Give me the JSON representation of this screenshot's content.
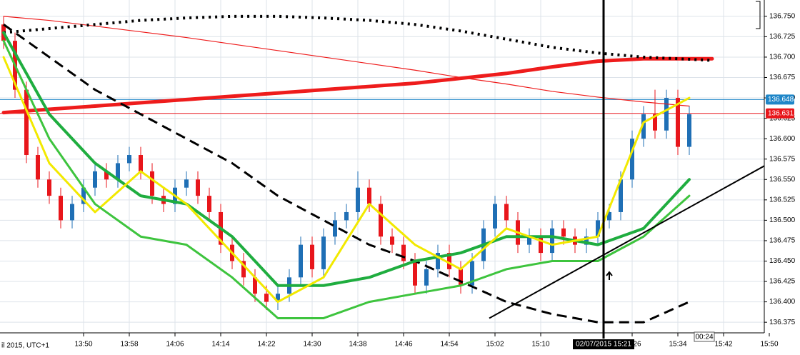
{
  "chart_data": {
    "type": "candlestick",
    "xlim": [
      "13:35",
      "15:50"
    ],
    "xticks": [
      "13:50",
      "13:58",
      "14:06",
      "14:14",
      "14:22",
      "14:30",
      "14:38",
      "14:46",
      "14:54",
      "15:02",
      "15:10",
      "15:26",
      "15:34",
      "15:42",
      "15:50"
    ],
    "x_axis_note": "il 2015, UTC+1",
    "ylim": [
      136.362,
      136.77
    ],
    "yticks": [
      136.375,
      {
        "value": 136.4,
        "label": "136.400"
      },
      136.425,
      {
        "value": 136.45,
        "label": "136.450"
      },
      136.475,
      {
        "value": 136.5,
        "label": "136.500"
      },
      136.525,
      {
        "value": 136.55,
        "label": "136.550"
      },
      136.575,
      {
        "value": 136.6,
        "label": "136.600"
      },
      136.625,
      {
        "value": 136.65,
        "label": "136.650"
      },
      136.675,
      {
        "value": 136.7,
        "label": "136.700"
      },
      136.725,
      {
        "value": 136.75,
        "label": "136.750"
      }
    ],
    "grid": true,
    "up_color": "#1f6fb5",
    "down_color": "#e8161b",
    "x": [
      "13:36",
      "13:38",
      "13:40",
      "13:42",
      "13:44",
      "13:46",
      "13:48",
      "13:50",
      "13:52",
      "13:54",
      "13:56",
      "13:58",
      "14:00",
      "14:02",
      "14:04",
      "14:06",
      "14:08",
      "14:10",
      "14:12",
      "14:14",
      "14:16",
      "14:18",
      "14:20",
      "14:22",
      "14:24",
      "14:26",
      "14:28",
      "14:30",
      "14:32",
      "14:34",
      "14:36",
      "14:38",
      "14:40",
      "14:42",
      "14:44",
      "14:46",
      "14:48",
      "14:50",
      "14:52",
      "14:54",
      "14:56",
      "14:58",
      "15:00",
      "15:02",
      "15:04",
      "15:06",
      "15:08",
      "15:10",
      "15:12",
      "15:14",
      "15:16",
      "15:18",
      "15:20",
      "15:22",
      "15:24",
      "15:26",
      "15:28",
      "15:30",
      "15:32",
      "15:34",
      "15:36"
    ],
    "open": [
      136.74,
      136.72,
      136.66,
      136.58,
      136.55,
      136.53,
      136.5,
      136.52,
      136.54,
      136.56,
      136.55,
      136.57,
      136.58,
      136.56,
      136.53,
      136.52,
      136.54,
      136.55,
      136.53,
      136.51,
      136.47,
      136.45,
      136.43,
      136.41,
      136.4,
      136.41,
      136.43,
      136.47,
      136.44,
      136.48,
      136.5,
      136.51,
      136.54,
      136.52,
      136.48,
      136.47,
      136.45,
      136.42,
      136.44,
      136.46,
      136.44,
      136.42,
      136.45,
      136.49,
      136.52,
      136.5,
      136.47,
      136.48,
      136.46,
      136.49,
      136.48,
      136.47,
      136.48,
      136.5,
      136.51,
      136.55,
      136.6,
      136.63,
      136.61,
      136.65,
      136.59
    ],
    "high": [
      136.75,
      136.73,
      136.67,
      136.59,
      136.56,
      136.54,
      136.53,
      136.55,
      136.57,
      136.57,
      136.58,
      136.59,
      136.59,
      136.57,
      136.54,
      136.55,
      136.56,
      136.56,
      136.54,
      136.52,
      136.48,
      136.46,
      136.44,
      136.42,
      136.42,
      136.44,
      136.48,
      136.48,
      136.49,
      136.51,
      136.52,
      136.56,
      136.55,
      136.53,
      136.49,
      136.48,
      136.46,
      136.45,
      136.47,
      136.47,
      136.45,
      136.46,
      136.5,
      136.53,
      136.53,
      136.51,
      136.49,
      136.49,
      136.5,
      136.5,
      136.49,
      136.49,
      136.51,
      136.52,
      136.56,
      136.61,
      136.64,
      136.66,
      136.66,
      136.66,
      136.64
    ],
    "low": [
      136.71,
      136.65,
      136.57,
      136.54,
      136.52,
      136.49,
      136.49,
      136.51,
      136.53,
      136.54,
      136.54,
      136.56,
      136.55,
      136.52,
      136.51,
      136.51,
      136.53,
      136.52,
      136.5,
      136.46,
      136.44,
      136.42,
      136.4,
      136.39,
      136.39,
      136.4,
      136.42,
      136.43,
      136.43,
      136.47,
      136.49,
      136.5,
      136.51,
      136.47,
      136.46,
      136.44,
      136.41,
      136.41,
      136.43,
      136.43,
      136.41,
      136.41,
      136.44,
      136.48,
      136.49,
      136.46,
      136.46,
      136.45,
      136.45,
      136.47,
      136.46,
      136.46,
      136.47,
      136.49,
      136.5,
      136.54,
      136.59,
      136.6,
      136.6,
      136.58,
      136.58
    ],
    "close": [
      136.72,
      136.66,
      136.58,
      136.55,
      136.53,
      136.5,
      136.52,
      136.54,
      136.56,
      136.55,
      136.57,
      136.58,
      136.56,
      136.53,
      136.52,
      136.54,
      136.55,
      136.53,
      136.51,
      136.47,
      136.45,
      136.43,
      136.41,
      136.4,
      136.41,
      136.43,
      136.47,
      136.44,
      136.48,
      136.5,
      136.51,
      136.54,
      136.52,
      136.48,
      136.47,
      136.45,
      136.42,
      136.44,
      136.46,
      136.44,
      136.42,
      136.45,
      136.49,
      136.52,
      136.5,
      136.47,
      136.48,
      136.46,
      136.49,
      136.48,
      136.47,
      136.48,
      136.5,
      136.51,
      136.55,
      136.6,
      136.63,
      136.61,
      136.65,
      136.59,
      136.63
    ],
    "series": [
      {
        "color": "#ee1c1c",
        "width": 5,
        "x": [
          "13:36",
          "13:44",
          "13:52",
          "14:00",
          "14:08",
          "14:16",
          "14:24",
          "14:32",
          "14:40",
          "14:48",
          "14:56",
          "15:04",
          "15:12",
          "15:20",
          "15:28",
          "15:40"
        ],
        "values": [
          136.632,
          136.636,
          136.64,
          136.644,
          136.648,
          136.652,
          136.656,
          136.66,
          136.664,
          136.668,
          136.674,
          136.68,
          136.688,
          136.695,
          136.698,
          136.698
        ]
      },
      {
        "color": "#ee1c1c",
        "width": 1.2,
        "x": [
          "13:36",
          "13:44",
          "13:52",
          "14:00",
          "14:08",
          "14:16",
          "14:24",
          "14:32",
          "14:40",
          "14:48",
          "14:56",
          "15:04",
          "15:12",
          "15:20",
          "15:28",
          "15:36"
        ],
        "values": [
          136.75,
          136.745,
          136.738,
          136.731,
          136.724,
          136.716,
          136.708,
          136.7,
          136.692,
          136.684,
          136.675,
          136.667,
          136.658,
          136.651,
          136.645,
          136.64
        ]
      },
      {
        "color": "#000000",
        "width": 4,
        "dash": "3 6",
        "x": [
          "13:36",
          "13:44",
          "13:52",
          "14:00",
          "14:08",
          "14:16",
          "14:24",
          "14:32",
          "14:40",
          "14:48",
          "14:56",
          "15:04",
          "15:12",
          "15:20",
          "15:28",
          "15:40"
        ],
        "values": [
          136.73,
          136.735,
          136.74,
          136.745,
          136.748,
          136.75,
          136.75,
          136.748,
          136.745,
          136.74,
          136.732,
          136.722,
          136.712,
          136.705,
          136.7,
          136.696
        ]
      },
      {
        "color": "#000000",
        "width": 3,
        "dash": "14 8",
        "x": [
          "13:36",
          "13:44",
          "13:52",
          "14:00",
          "14:08",
          "14:16",
          "14:24",
          "14:32",
          "14:40",
          "14:48",
          "14:56",
          "15:04",
          "15:12",
          "15:20",
          "15:28",
          "15:36"
        ],
        "values": [
          136.74,
          136.7,
          136.66,
          136.63,
          136.6,
          136.57,
          136.53,
          136.5,
          136.47,
          136.45,
          136.425,
          136.4,
          136.385,
          136.375,
          136.375,
          136.4
        ]
      },
      {
        "color": "#1fad3f",
        "width": 4,
        "x": [
          "13:36",
          "13:44",
          "13:52",
          "14:00",
          "14:08",
          "14:16",
          "14:24",
          "14:32",
          "14:40",
          "14:48",
          "14:56",
          "15:04",
          "15:12",
          "15:20",
          "15:28",
          "15:36"
        ],
        "values": [
          136.73,
          136.63,
          136.57,
          136.53,
          136.52,
          136.48,
          136.42,
          136.42,
          136.43,
          136.45,
          136.46,
          136.48,
          136.48,
          136.47,
          136.49,
          136.55
        ]
      },
      {
        "color": "#f2e900",
        "width": 3,
        "x": [
          "13:36",
          "13:44",
          "13:52",
          "14:00",
          "14:08",
          "14:16",
          "14:24",
          "14:32",
          "14:40",
          "14:48",
          "14:56",
          "15:04",
          "15:12",
          "15:20",
          "15:28",
          "15:36"
        ],
        "values": [
          136.7,
          136.57,
          136.51,
          136.56,
          136.52,
          136.46,
          136.4,
          136.43,
          136.52,
          136.47,
          136.44,
          136.49,
          136.47,
          136.48,
          136.62,
          136.65
        ]
      },
      {
        "color": "#3ec43e",
        "width": 3,
        "x": [
          "13:36",
          "13:44",
          "13:52",
          "14:00",
          "14:08",
          "14:16",
          "14:24",
          "14:32",
          "14:40",
          "14:48",
          "14:56",
          "15:04",
          "15:12",
          "15:20",
          "15:28",
          "15:36"
        ],
        "values": [
          136.72,
          136.6,
          136.52,
          136.48,
          136.47,
          136.43,
          136.38,
          136.38,
          136.4,
          136.41,
          136.42,
          136.44,
          136.45,
          136.45,
          136.48,
          136.53
        ]
      }
    ],
    "trendline": {
      "x": [
        "15:01",
        "15:50"
      ],
      "values": [
        136.38,
        136.57
      ],
      "color": "#000000"
    },
    "price_lines": [
      {
        "value": 136.648,
        "label": "136.648",
        "color": "#1f86c8"
      },
      {
        "value": 136.631,
        "label": "136.631",
        "color": "#e8161b"
      }
    ],
    "crosshair": {
      "x": "15:21",
      "label": "02/07/2015 15:21"
    },
    "timer": "00:24"
  }
}
